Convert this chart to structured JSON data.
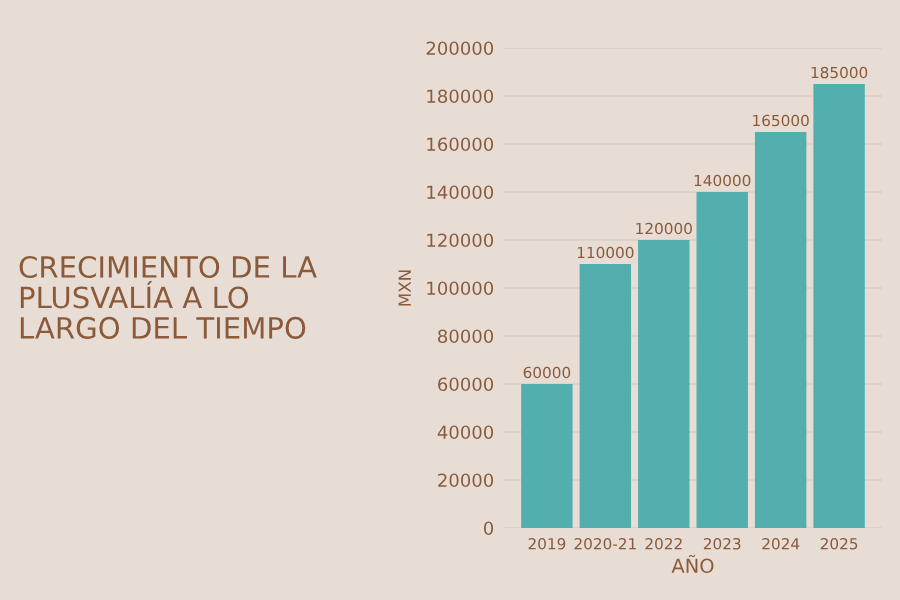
{
  "chart_data": {
    "type": "bar",
    "title": "CRECIMIENTO DE LA\nPLUSVALÍA A LO\nLARGO DEL TIEMPO",
    "xlabel": "AÑO",
    "ylabel": "MXN",
    "categories": [
      "2019",
      "2020-21",
      "2022",
      "2023",
      "2024",
      "2025"
    ],
    "values": [
      60000,
      110000,
      120000,
      140000,
      165000,
      185000
    ],
    "color": "#52afad",
    "ylim": [
      0,
      200000
    ],
    "yticks": [
      0,
      20000,
      40000,
      60000,
      80000,
      100000,
      120000,
      140000,
      160000,
      180000,
      200000
    ],
    "grid": "y",
    "data_labels": true
  }
}
